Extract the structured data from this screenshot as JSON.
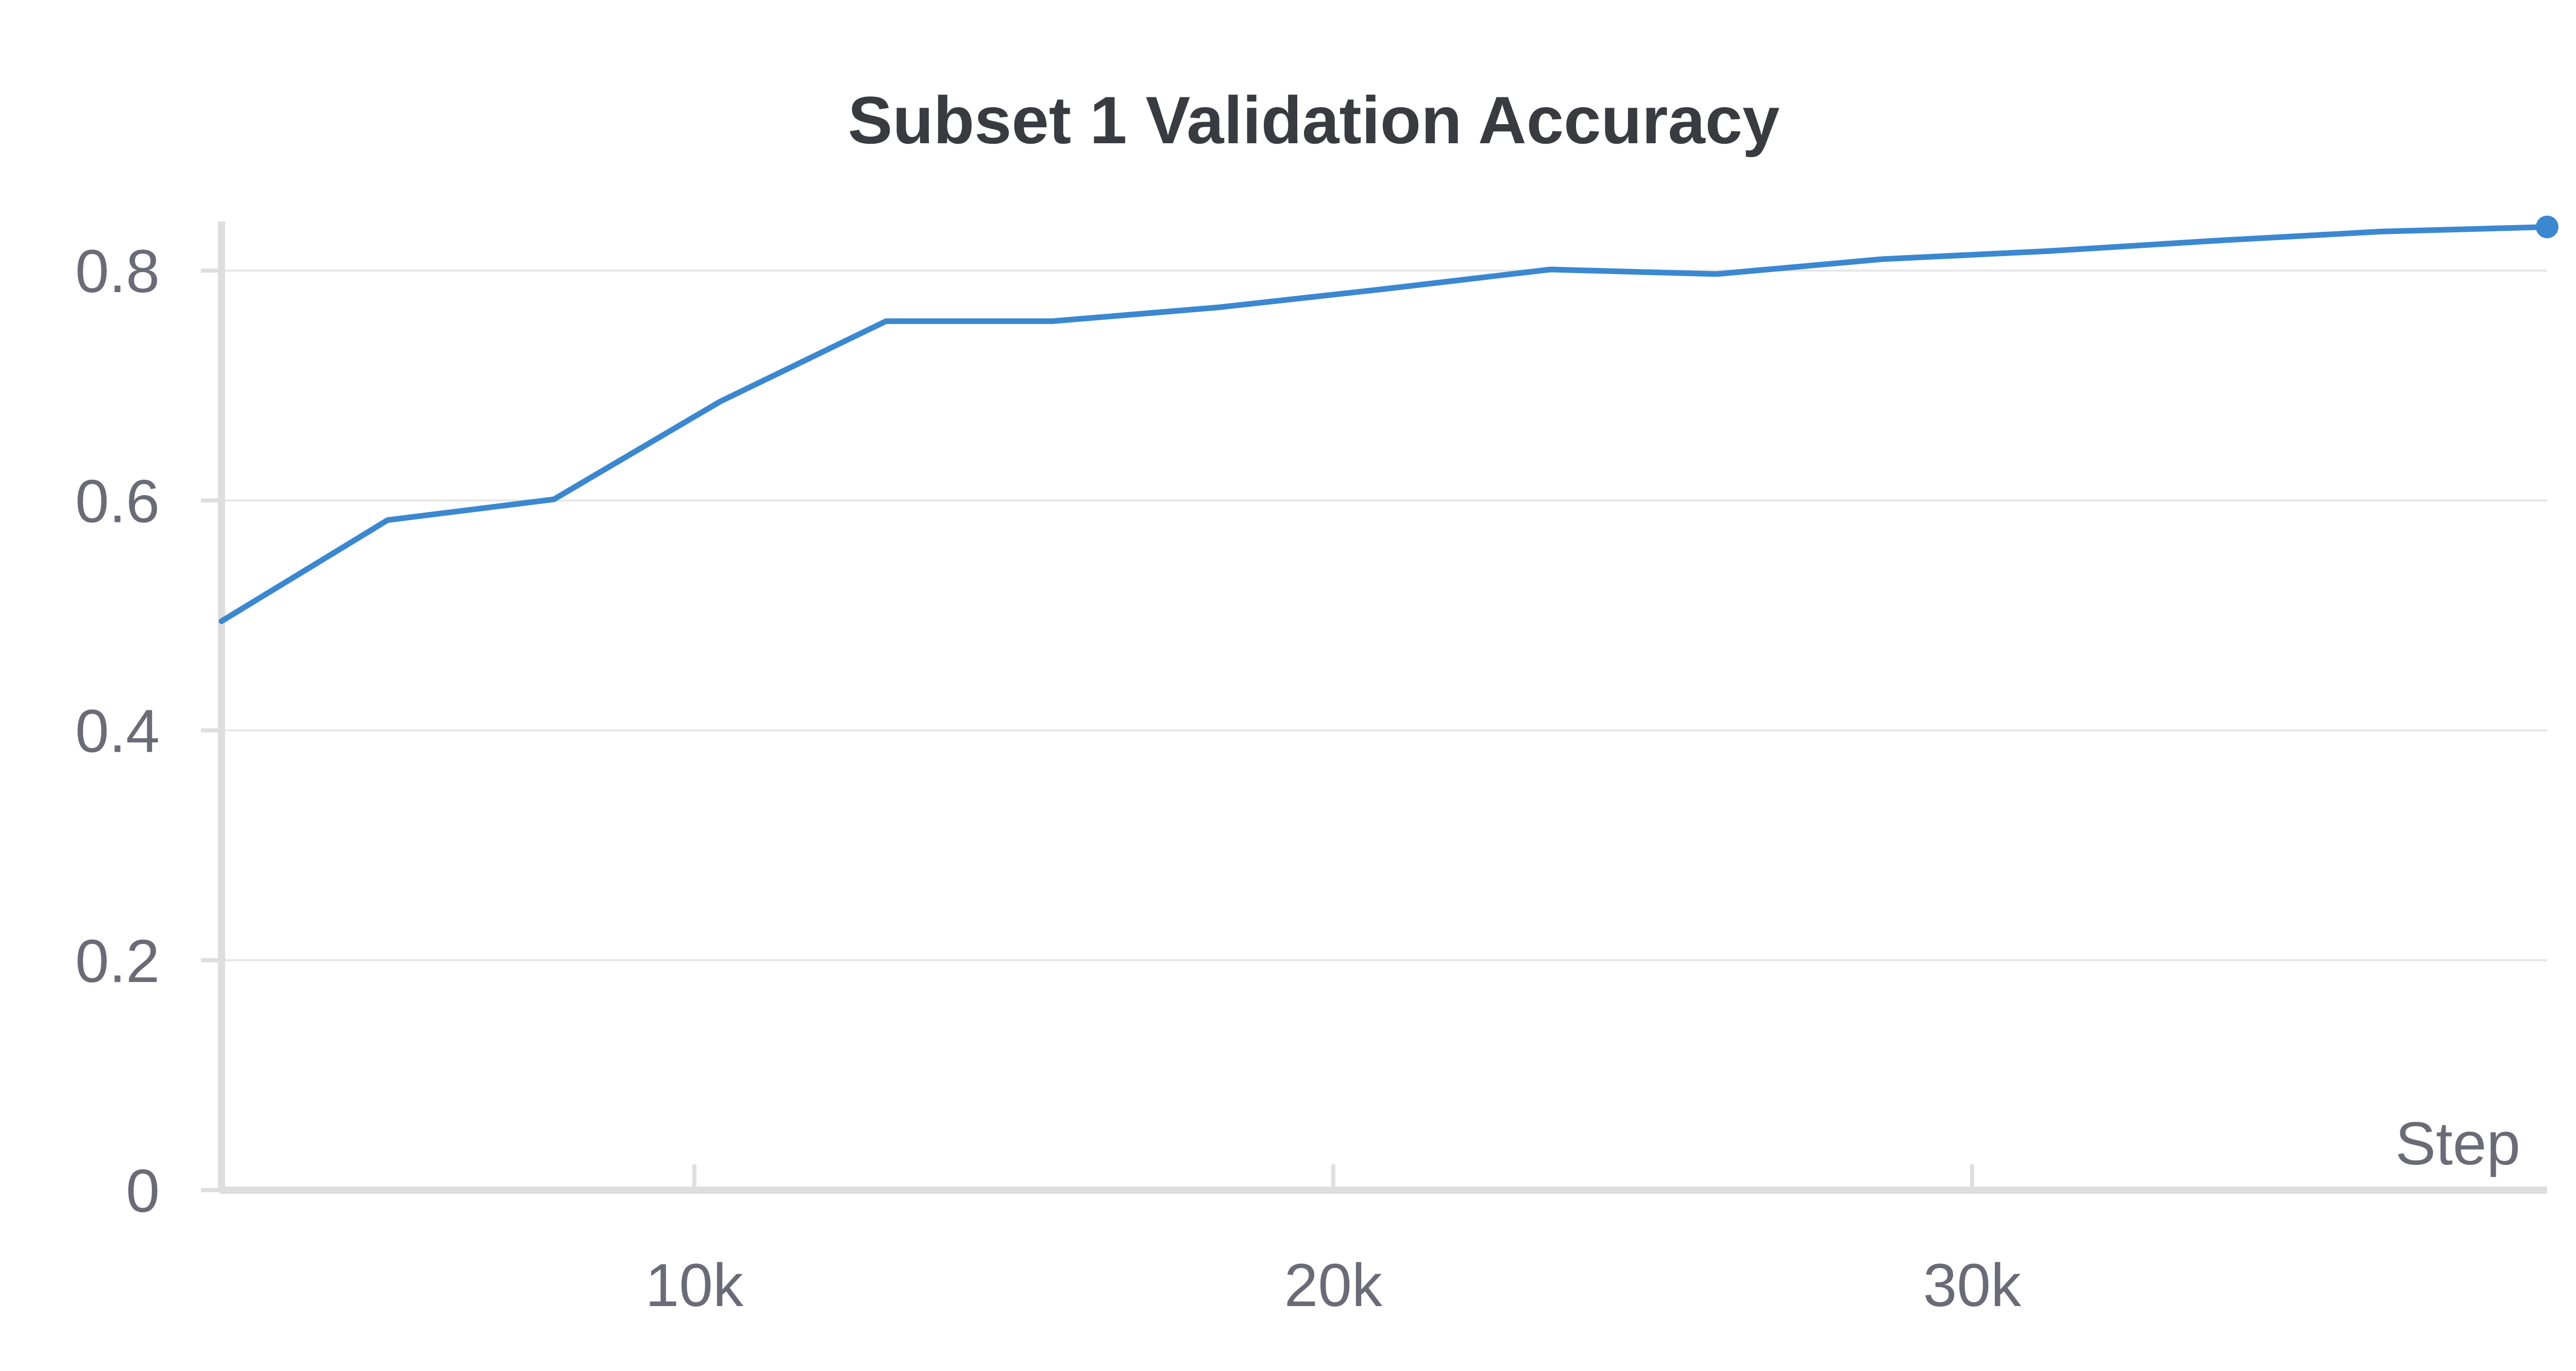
{
  "chart_data": {
    "type": "line",
    "title": "Subset 1 Validation Accuracy",
    "xlabel": "Step",
    "ylabel": "",
    "xlim": [
      2600,
      39000
    ],
    "ylim": [
      0,
      0.84
    ],
    "x_ticks": [
      {
        "value": 10000,
        "label": "10k"
      },
      {
        "value": 20000,
        "label": "20k"
      },
      {
        "value": 30000,
        "label": "30k"
      }
    ],
    "y_ticks": [
      {
        "value": 0,
        "label": "0"
      },
      {
        "value": 0.2,
        "label": "0.2"
      },
      {
        "value": 0.4,
        "label": "0.4"
      },
      {
        "value": 0.6,
        "label": "0.6"
      },
      {
        "value": 0.8,
        "label": "0.8"
      }
    ],
    "grid": true,
    "colors": {
      "line": "#3b88d0",
      "grid": "#e6e6e6",
      "axis": "#dedede"
    },
    "series": [
      {
        "x": [
          2600,
          5200,
          7800,
          10400,
          13000,
          15600,
          18200,
          20800,
          23400,
          26000,
          28600,
          31200,
          33800,
          36400,
          39000
        ],
        "y": [
          0.495,
          0.583,
          0.601,
          0.686,
          0.756,
          0.756,
          0.768,
          0.784,
          0.801,
          0.797,
          0.81,
          0.817,
          0.826,
          0.834,
          0.838
        ]
      }
    ]
  }
}
